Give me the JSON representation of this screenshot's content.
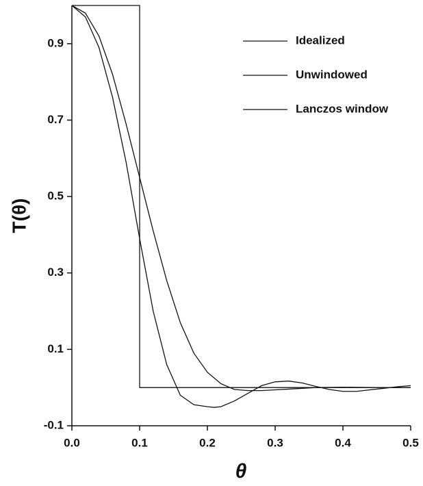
{
  "chart_data": {
    "type": "line",
    "xlabel": "θ",
    "ylabel": "T(θ)",
    "xlim": [
      0,
      0.5
    ],
    "ylim": [
      -0.1,
      1.0
    ],
    "xticks": [
      {
        "value": 0,
        "label": "0.0"
      },
      0.1,
      0.2,
      0.3,
      0.4,
      0.5
    ],
    "yticks": [
      -0.1,
      0.1,
      0.3,
      0.5,
      0.7,
      0.9
    ],
    "legend": "top-right",
    "series": [
      {
        "name": "Idealized",
        "color": "#111111",
        "x": [
          0,
          0.1,
          0.1,
          0.5
        ],
        "values": [
          1.0,
          1.0,
          0,
          0
        ]
      },
      {
        "name": "Unwindowed",
        "color": "#111111",
        "x": [
          0,
          0.02,
          0.04,
          0.06,
          0.08,
          0.1,
          0.12,
          0.14,
          0.16,
          0.18,
          0.2,
          0.21,
          0.22,
          0.24,
          0.26,
          0.28,
          0.3,
          0.32,
          0.34,
          0.36,
          0.38,
          0.4,
          0.42,
          0.44,
          0.46,
          0.48,
          0.5
        ],
        "values": [
          1.0,
          0.97,
          0.89,
          0.76,
          0.59,
          0.39,
          0.2,
          0.06,
          -0.02,
          -0.045,
          -0.05,
          -0.052,
          -0.05,
          -0.035,
          -0.015,
          0.005,
          0.015,
          0.017,
          0.012,
          0.003,
          -0.005,
          -0.01,
          -0.01,
          -0.006,
          -0.002,
          0.002,
          0.005
        ]
      },
      {
        "name": "Lanczos window",
        "color": "#111111",
        "x": [
          0,
          0.02,
          0.04,
          0.06,
          0.08,
          0.1,
          0.12,
          0.14,
          0.16,
          0.18,
          0.2,
          0.22,
          0.24,
          0.26,
          0.28,
          0.3,
          0.32,
          0.34,
          0.36,
          0.4,
          0.45,
          0.5
        ],
        "values": [
          1.0,
          0.98,
          0.92,
          0.82,
          0.69,
          0.55,
          0.41,
          0.28,
          0.17,
          0.09,
          0.04,
          0.01,
          -0.005,
          -0.008,
          -0.008,
          -0.006,
          -0.004,
          -0.002,
          0,
          0.001,
          0,
          0
        ]
      }
    ]
  }
}
